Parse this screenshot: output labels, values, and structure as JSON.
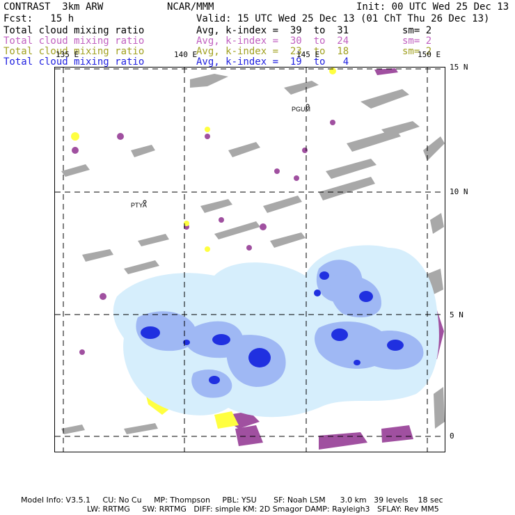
{
  "header": {
    "model": "CONTRAST  3km ARW",
    "org": "NCAR/MMM",
    "init": "Init: 00 UTC Wed 25 Dec 13",
    "fcst": "Fcst:   15 h",
    "valid": "Valid: 15 UTC Wed 25 Dec 13 (01 ChT Thu 26 Dec 13)"
  },
  "fields": [
    {
      "name": "Total cloud mixing ratio",
      "stat": "Avg, k-index =  39  to  31",
      "sm": "sm= 2",
      "color": "#000000"
    },
    {
      "name": "Total cloud mixing ratio",
      "stat": "Avg, k-index =  30  to  24",
      "sm": "sm= 2",
      "color": "#c060c0"
    },
    {
      "name": "Total cloud mixing ratio",
      "stat": "Avg, k-index =  23  to  18",
      "sm": "sm= 2",
      "color": "#a0a020"
    },
    {
      "name": "Total cloud mixing ratio",
      "stat": "Avg, k-index =  19  to   4",
      "sm": "",
      "color": "#2020e0"
    }
  ],
  "map": {
    "lon_labels": [
      "135 E",
      "140 E",
      "145 E",
      "150 E"
    ],
    "lat_labels": [
      "15 N",
      "10 N",
      "5 N",
      "0"
    ],
    "stations": [
      "PGUM",
      "PTYA"
    ],
    "colors": {
      "gray": "#a8a8a8",
      "purple": "#a050a0",
      "yellow": "#ffff40",
      "light_blue": "#d6eefc",
      "mid_blue": "#9fb8f4",
      "dark_blue": "#2030e0"
    }
  },
  "footer": {
    "line1": "Model Info: V3.5.1     CU: No Cu     MP: Thompson     PBL: YSU       SF: Noah LSM      3.0 km   39 levels    18 sec",
    "line2": "LW: RRTMG     SW: RRTMG   DIFF: simple KM: 2D Smagor DAMP: Rayleigh3   SFLAY: Rev MM5"
  }
}
